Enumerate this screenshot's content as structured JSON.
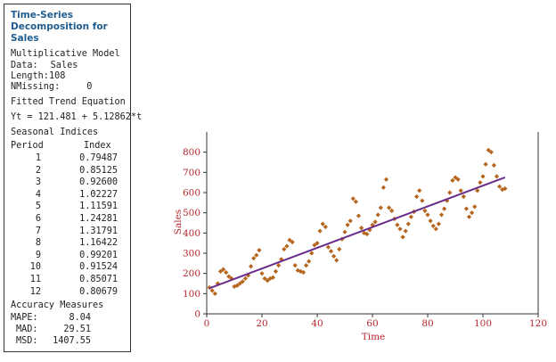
{
  "panel": {
    "title": "Time-Series Decomposition for Sales",
    "model": "Multiplicative Model",
    "data_label": "Data:",
    "data_value": "Sales",
    "length_label": "Length:",
    "length_value": "108",
    "nmissing_label": "NMissing:",
    "nmissing_value": "0",
    "trend_heading": "Fitted Trend Equation",
    "trend_equation": "Yt = 121.481 + 5.12862*t",
    "seasonal_heading": "Seasonal Indices",
    "col_period": "Period",
    "col_index": "Index",
    "seasonal_indices": [
      {
        "period": "1",
        "index": "0.79487"
      },
      {
        "period": "2",
        "index": "0.85125"
      },
      {
        "period": "3",
        "index": "0.92600"
      },
      {
        "period": "4",
        "index": "1.02227"
      },
      {
        "period": "5",
        "index": "1.11591"
      },
      {
        "period": "6",
        "index": "1.24281"
      },
      {
        "period": "7",
        "index": "1.31791"
      },
      {
        "period": "8",
        "index": "1.16422"
      },
      {
        "period": "9",
        "index": "0.99201"
      },
      {
        "period": "10",
        "index": "0.91524"
      },
      {
        "period": "11",
        "index": "0.85071"
      },
      {
        "period": "12",
        "index": "0.80679"
      }
    ],
    "accuracy_heading": "Accuracy Measures",
    "accuracy": [
      {
        "label": "MAPE:",
        "value": "8.04"
      },
      {
        "label": "MAD:",
        "value": "29.51"
      },
      {
        "label": "MSD:",
        "value": "1407.55"
      }
    ]
  },
  "chart_data": {
    "type": "scatter",
    "xlabel": "Time",
    "ylabel": "Sales",
    "xlim": [
      0,
      120
    ],
    "ylim": [
      0,
      900
    ],
    "xticks": [
      0,
      20,
      40,
      60,
      80,
      100,
      120
    ],
    "yticks": [
      0,
      100,
      200,
      300,
      400,
      500,
      600,
      700,
      800
    ],
    "grid": false,
    "colors": {
      "points": "#b5651d",
      "trend": "#6a2c8a",
      "axis_text": "#b3262b",
      "axis": "#333333"
    },
    "trend": {
      "intercept": 121.481,
      "slope": 5.12862
    },
    "series": [
      {
        "points": [
          [
            1,
            130
          ],
          [
            2,
            115
          ],
          [
            3,
            100
          ],
          [
            4,
            150
          ],
          [
            5,
            210
          ],
          [
            6,
            220
          ],
          [
            7,
            205
          ],
          [
            8,
            185
          ],
          [
            9,
            175
          ],
          [
            10,
            135
          ],
          [
            11,
            140
          ],
          [
            12,
            150
          ],
          [
            13,
            160
          ],
          [
            14,
            175
          ],
          [
            15,
            190
          ],
          [
            16,
            235
          ],
          [
            17,
            275
          ],
          [
            18,
            290
          ],
          [
            19,
            315
          ],
          [
            20,
            200
          ],
          [
            21,
            175
          ],
          [
            22,
            165
          ],
          [
            23,
            175
          ],
          [
            24,
            180
          ],
          [
            25,
            210
          ],
          [
            26,
            240
          ],
          [
            27,
            270
          ],
          [
            28,
            320
          ],
          [
            29,
            335
          ],
          [
            30,
            365
          ],
          [
            31,
            355
          ],
          [
            32,
            240
          ],
          [
            33,
            215
          ],
          [
            34,
            210
          ],
          [
            35,
            205
          ],
          [
            36,
            240
          ],
          [
            37,
            260
          ],
          [
            38,
            300
          ],
          [
            39,
            340
          ],
          [
            40,
            350
          ],
          [
            41,
            410
          ],
          [
            42,
            445
          ],
          [
            43,
            430
          ],
          [
            44,
            330
          ],
          [
            45,
            310
          ],
          [
            46,
            285
          ],
          [
            47,
            265
          ],
          [
            48,
            320
          ],
          [
            49,
            370
          ],
          [
            50,
            405
          ],
          [
            51,
            440
          ],
          [
            52,
            460
          ],
          [
            53,
            570
          ],
          [
            54,
            555
          ],
          [
            55,
            485
          ],
          [
            56,
            425
          ],
          [
            57,
            400
          ],
          [
            58,
            395
          ],
          [
            59,
            415
          ],
          [
            60,
            440
          ],
          [
            61,
            455
          ],
          [
            62,
            490
          ],
          [
            63,
            525
          ],
          [
            64,
            625
          ],
          [
            65,
            665
          ],
          [
            66,
            525
          ],
          [
            67,
            510
          ],
          [
            68,
            470
          ],
          [
            69,
            440
          ],
          [
            70,
            420
          ],
          [
            71,
            380
          ],
          [
            72,
            410
          ],
          [
            73,
            445
          ],
          [
            74,
            480
          ],
          [
            75,
            505
          ],
          [
            76,
            580
          ],
          [
            77,
            610
          ],
          [
            78,
            560
          ],
          [
            79,
            510
          ],
          [
            80,
            490
          ],
          [
            81,
            460
          ],
          [
            82,
            435
          ],
          [
            83,
            420
          ],
          [
            84,
            445
          ],
          [
            85,
            490
          ],
          [
            86,
            520
          ],
          [
            87,
            560
          ],
          [
            88,
            600
          ],
          [
            89,
            660
          ],
          [
            90,
            675
          ],
          [
            91,
            665
          ],
          [
            92,
            610
          ],
          [
            93,
            580
          ],
          [
            94,
            520
          ],
          [
            95,
            480
          ],
          [
            96,
            500
          ],
          [
            97,
            530
          ],
          [
            98,
            610
          ],
          [
            99,
            650
          ],
          [
            100,
            680
          ],
          [
            101,
            740
          ],
          [
            102,
            810
          ],
          [
            103,
            800
          ],
          [
            104,
            735
          ],
          [
            105,
            680
          ],
          [
            106,
            630
          ],
          [
            107,
            615
          ],
          [
            108,
            620
          ]
        ]
      }
    ]
  }
}
